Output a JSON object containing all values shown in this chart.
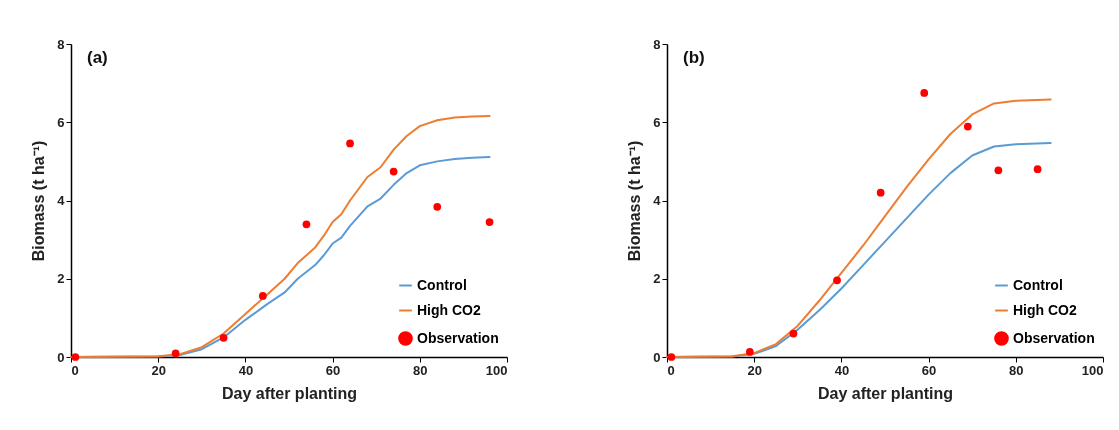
{
  "chart_data": [
    {
      "type": "line",
      "xlabel": "Day after planting",
      "ylabel": "Biomass (t ha⁻¹)",
      "annotations": [
        "(a)"
      ],
      "xlim": [
        0,
        100
      ],
      "xticks": [
        0,
        20,
        40,
        60,
        80,
        100
      ],
      "ylim": [
        0,
        8
      ],
      "yticks": [
        0,
        2,
        4,
        6,
        8
      ],
      "grid": false,
      "legend": "bottom right",
      "series": [
        {
          "name": "Control",
          "color": "#5b9bd5",
          "x": [
            0,
            20,
            25,
            30,
            35,
            40,
            45,
            49,
            52,
            56,
            58,
            60,
            62,
            64,
            68,
            71,
            74,
            77,
            80,
            84,
            88,
            92,
            96
          ],
          "values": [
            0,
            0.01,
            0.05,
            0.2,
            0.5,
            0.95,
            1.35,
            1.65,
            2.0,
            2.35,
            2.6,
            2.9,
            3.05,
            3.35,
            3.85,
            4.05,
            4.4,
            4.7,
            4.9,
            5.0,
            5.06,
            5.09,
            5.11
          ]
        },
        {
          "name": "High CO2",
          "color": "#ed7d31",
          "x": [
            0,
            20,
            25,
            30,
            35,
            40,
            45,
            49,
            52,
            56,
            58,
            60,
            62,
            64,
            68,
            71,
            74,
            77,
            80,
            84,
            88,
            92,
            96
          ],
          "values": [
            0,
            0.02,
            0.07,
            0.25,
            0.6,
            1.1,
            1.6,
            2.0,
            2.4,
            2.8,
            3.1,
            3.45,
            3.65,
            4.0,
            4.6,
            4.85,
            5.3,
            5.65,
            5.9,
            6.05,
            6.12,
            6.15,
            6.16
          ]
        },
        {
          "name": "Observation",
          "type": "scatter",
          "marker": "circle",
          "color": "#ff0000",
          "x": [
            1,
            24,
            35,
            44,
            54,
            64,
            74,
            84,
            96
          ],
          "values": [
            0,
            0.09,
            0.49,
            1.56,
            3.39,
            5.46,
            4.74,
            3.84,
            3.45
          ]
        }
      ]
    },
    {
      "type": "line",
      "xlabel": "Day after planting",
      "ylabel": "Biomass (t ha⁻¹)",
      "annotations": [
        "(b)"
      ],
      "xlim": [
        0,
        100
      ],
      "xticks": [
        0,
        20,
        40,
        60,
        80,
        100
      ],
      "ylim": [
        0,
        8
      ],
      "yticks": [
        0,
        2,
        4,
        6,
        8
      ],
      "grid": false,
      "legend": "bottom right",
      "series": [
        {
          "name": "Control",
          "color": "#5b9bd5",
          "x": [
            0,
            15,
            20,
            25,
            30,
            35,
            40,
            45,
            50,
            55,
            60,
            65,
            70,
            75,
            80,
            88
          ],
          "values": [
            0,
            0.01,
            0.08,
            0.28,
            0.7,
            1.2,
            1.75,
            2.35,
            2.95,
            3.55,
            4.15,
            4.7,
            5.15,
            5.38,
            5.44,
            5.47
          ]
        },
        {
          "name": "High CO2",
          "color": "#ed7d31",
          "x": [
            0,
            15,
            20,
            25,
            30,
            35,
            40,
            45,
            50,
            55,
            60,
            65,
            70,
            75,
            80,
            88
          ],
          "values": [
            0,
            0.02,
            0.1,
            0.33,
            0.8,
            1.45,
            2.15,
            2.85,
            3.6,
            4.35,
            5.05,
            5.7,
            6.2,
            6.48,
            6.55,
            6.58
          ]
        },
        {
          "name": "Observation",
          "type": "scatter",
          "marker": "circle",
          "color": "#ff0000",
          "x": [
            1,
            19,
            29,
            39,
            49,
            59,
            69,
            76,
            85
          ],
          "values": [
            0,
            0.13,
            0.6,
            1.96,
            4.2,
            6.75,
            5.89,
            4.77,
            4.8
          ]
        }
      ]
    }
  ]
}
